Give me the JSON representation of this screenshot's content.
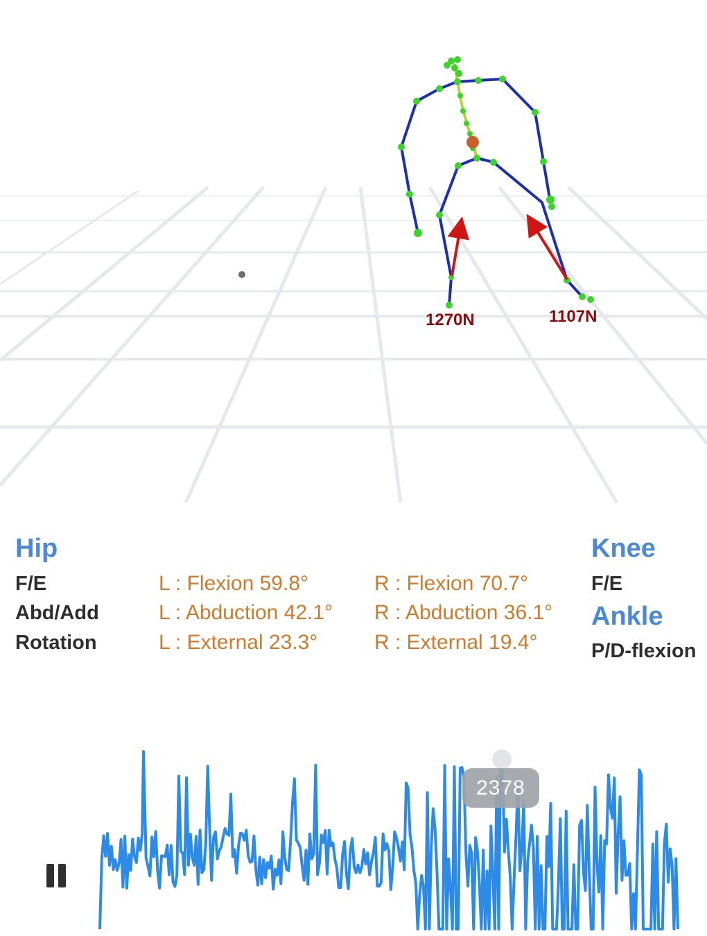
{
  "scene": {
    "forces": [
      {
        "label": "1270N",
        "value_n": 1270
      },
      {
        "label": "1107N",
        "value_n": 1107
      }
    ]
  },
  "hip": {
    "title": "Hip",
    "rows": [
      {
        "label": "F/E",
        "left": "L : Flexion 59.8°",
        "right": "R : Flexion 70.7°"
      },
      {
        "label": "Abd/Add",
        "left": "L : Abduction 42.1°",
        "right": "R : Abduction 36.1°"
      },
      {
        "label": "Rotation",
        "left": "L : External 23.3°",
        "right": "R : External 19.4°"
      }
    ]
  },
  "knee": {
    "title": "Knee",
    "rows": [
      {
        "label": "F/E"
      }
    ]
  },
  "ankle": {
    "title": "Ankle",
    "rows": [
      {
        "label": "P/D-flexion"
      }
    ]
  },
  "playback": {
    "state": "playing",
    "button_icon": "pause-icon",
    "current_frame": "2378"
  },
  "colors": {
    "section_title": "#4a88d8",
    "value_text": "#cf7a2a",
    "waveform": "#2b8be6",
    "skeleton_limb": "#1c2fb0",
    "skeleton_joint": "#3bd42a",
    "force_arrow": "#d01515",
    "center_of_mass": "#c8602e"
  }
}
